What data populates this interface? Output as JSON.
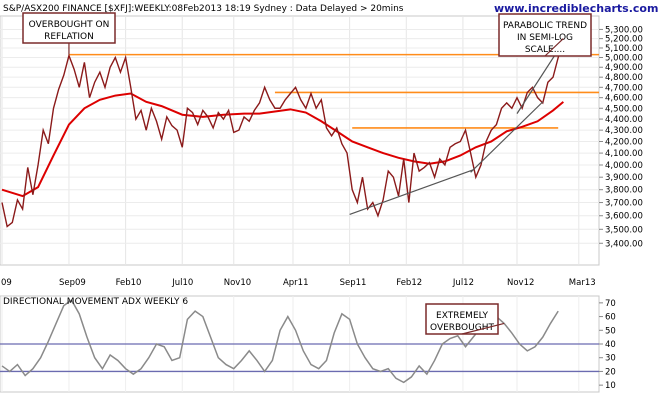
{
  "chart_data": [
    {
      "type": "line",
      "title": "S&P/ASX200 FINANCE [$XFJ]:WEEKLY:08Feb2013 18:19 Sydney : Data Delayed > 20mins",
      "watermark": "www.incrediblecharts.com",
      "scale": "log",
      "ylim": [
        3250,
        5450
      ],
      "y_ticks": [
        3400,
        3500,
        3600,
        3700,
        3800,
        3900,
        4000,
        4100,
        4200,
        4300,
        4400,
        4500,
        4600,
        4700,
        4800,
        4900,
        5000,
        5100,
        5200,
        5300
      ],
      "y_tick_labels": [
        "3,400.00",
        "3,500.00",
        "3,600.00",
        "3,700.00",
        "3,800.00",
        "3,900.00",
        "4,000.00",
        "4,100.00",
        "4,200.00",
        "4,300.00",
        "4,400.00",
        "4,500.00",
        "4,600.00",
        "4,700.00",
        "4,800.00",
        "4,900.00",
        "5,000.00",
        "5,100.00",
        "5,200.00",
        "5,300.00"
      ],
      "x_labels": [
        "09",
        "Sep09",
        "Feb10",
        "Jul10",
        "Nov10",
        "Apr11",
        "Sep11",
        "Feb12",
        "Jul12",
        "Nov12",
        "Mar13"
      ],
      "x_label_week": [
        0,
        26,
        48,
        70,
        90,
        113,
        135,
        157,
        179,
        200,
        224
      ],
      "series": [
        {
          "kind": "price",
          "color": "#8b1a1a",
          "x": [
            0,
            2,
            4,
            6,
            8,
            10,
            12,
            14,
            16,
            18,
            20,
            22,
            24,
            26,
            28,
            30,
            32,
            34,
            36,
            38,
            40,
            42,
            44,
            46,
            48,
            50,
            52,
            54,
            56,
            58,
            60,
            62,
            64,
            66,
            68,
            70,
            72,
            74,
            76,
            78,
            80,
            82,
            84,
            86,
            88,
            90,
            92,
            94,
            96,
            98,
            100,
            102,
            104,
            106,
            108,
            110,
            112,
            114,
            116,
            118,
            120,
            122,
            124,
            126,
            128,
            130,
            132,
            134,
            136,
            138,
            140,
            142,
            144,
            146,
            148,
            150,
            152,
            154,
            156,
            158,
            160,
            162,
            164,
            166,
            168,
            170,
            172,
            174,
            176,
            178,
            180,
            182,
            184,
            186,
            188,
            190,
            192,
            194,
            196,
            198,
            200,
            202,
            204,
            206,
            208,
            210,
            212,
            214,
            216,
            218
          ],
          "y": [
            3700,
            3520,
            3550,
            3720,
            3650,
            3980,
            3760,
            4000,
            4300,
            4180,
            4500,
            4680,
            4820,
            5020,
            4880,
            4700,
            4950,
            4600,
            4750,
            4850,
            4700,
            4900,
            5000,
            4850,
            5000,
            4700,
            4400,
            4480,
            4300,
            4500,
            4380,
            4220,
            4420,
            4340,
            4300,
            4150,
            4500,
            4460,
            4350,
            4480,
            4420,
            4320,
            4460,
            4400,
            4480,
            4280,
            4300,
            4420,
            4380,
            4480,
            4550,
            4700,
            4580,
            4500,
            4500,
            4580,
            4640,
            4700,
            4580,
            4500,
            4640,
            4500,
            4580,
            4320,
            4250,
            4320,
            4180,
            4100,
            3800,
            3700,
            3900,
            3650,
            3700,
            3600,
            3720,
            3950,
            3900,
            3750,
            4050,
            3700,
            4100,
            3950,
            3980,
            4020,
            3900,
            4050,
            4000,
            4150,
            4180,
            4200,
            4300,
            4100,
            3900,
            4000,
            4200,
            4300,
            4350,
            4500,
            4550,
            4500,
            4600,
            4500,
            4650,
            4700,
            4600,
            4550,
            4750,
            4800,
            5000,
            5200
          ]
        },
        {
          "kind": "moving-average",
          "color": "#dd0000",
          "x": [
            0,
            8,
            14,
            20,
            26,
            32,
            38,
            44,
            50,
            56,
            62,
            70,
            78,
            86,
            94,
            100,
            106,
            112,
            118,
            124,
            130,
            136,
            142,
            148,
            154,
            160,
            166,
            172,
            178,
            184,
            190,
            196,
            202,
            208,
            214,
            218
          ],
          "y": [
            3800,
            3750,
            3820,
            4080,
            4350,
            4500,
            4580,
            4620,
            4640,
            4560,
            4520,
            4440,
            4420,
            4440,
            4450,
            4450,
            4470,
            4490,
            4460,
            4380,
            4290,
            4200,
            4150,
            4100,
            4060,
            4030,
            4010,
            4030,
            4080,
            4150,
            4200,
            4290,
            4330,
            4380,
            4480,
            4560
          ]
        }
      ],
      "horizontal_levels": [
        {
          "value": 5030,
          "from_week": 26,
          "to_week": 240
        },
        {
          "value": 4650,
          "from_week": 106,
          "to_week": 240
        },
        {
          "value": 4320,
          "from_week": 136,
          "to_week": 216
        }
      ],
      "trend_lines": [
        {
          "from": [
            135,
            3610
          ],
          "to": [
            183,
            3960
          ]
        },
        {
          "from": [
            182,
            3940
          ],
          "to": [
            210,
            4560
          ]
        },
        {
          "from": [
            200,
            4450
          ],
          "to": [
            223,
            5380
          ]
        }
      ],
      "annotations": [
        {
          "label": "OVERBOUGHT ON\nREFLATION",
          "lines": [
            "OVERBOUGHT ON",
            "REFLATION"
          ]
        },
        {
          "label": "PARABOLIC TREND\nIN SEMI-LOG\nSCALE....",
          "lines": [
            "PARABOLIC TREND",
            "IN SEMI-LOG",
            "SCALE...."
          ]
        }
      ]
    },
    {
      "type": "line",
      "title": "DIRECTIONAL MOVEMENT ADX WEEKLY 6",
      "ylim": [
        5,
        75
      ],
      "y_ticks": [
        10,
        20,
        30,
        40,
        50,
        60,
        70
      ],
      "y_tick_labels": [
        "10",
        "20",
        "30",
        "40",
        "50",
        "60",
        "70"
      ],
      "reference_lines": [
        20,
        40
      ],
      "series": [
        {
          "kind": "adx",
          "color": "#8a8a8a",
          "x": [
            0,
            3,
            6,
            9,
            12,
            15,
            18,
            21,
            24,
            27,
            30,
            33,
            36,
            39,
            42,
            45,
            48,
            51,
            54,
            57,
            60,
            63,
            66,
            69,
            72,
            75,
            78,
            81,
            84,
            87,
            90,
            93,
            96,
            99,
            102,
            105,
            108,
            111,
            114,
            117,
            120,
            123,
            126,
            129,
            132,
            135,
            138,
            141,
            144,
            147,
            150,
            153,
            156,
            159,
            162,
            165,
            168,
            171,
            174,
            177,
            180,
            183,
            186,
            189,
            192,
            195,
            198,
            201,
            204,
            207,
            210,
            213,
            216
          ],
          "y": [
            24,
            20,
            25,
            17,
            22,
            30,
            42,
            55,
            68,
            72,
            62,
            45,
            30,
            22,
            32,
            28,
            22,
            18,
            22,
            30,
            40,
            38,
            28,
            30,
            58,
            64,
            60,
            45,
            30,
            25,
            22,
            28,
            35,
            28,
            20,
            28,
            50,
            60,
            50,
            35,
            25,
            22,
            28,
            48,
            62,
            58,
            40,
            30,
            22,
            20,
            22,
            15,
            12,
            16,
            24,
            18,
            28,
            40,
            44,
            46,
            38,
            45,
            52,
            56,
            60,
            55,
            48,
            40,
            35,
            38,
            45,
            55,
            64
          ]
        }
      ],
      "annotations": [
        {
          "label": "EXTREMELY\nOVERBOUGHT",
          "lines": [
            "EXTREMELY",
            "OVERBOUGHT"
          ]
        }
      ]
    }
  ]
}
